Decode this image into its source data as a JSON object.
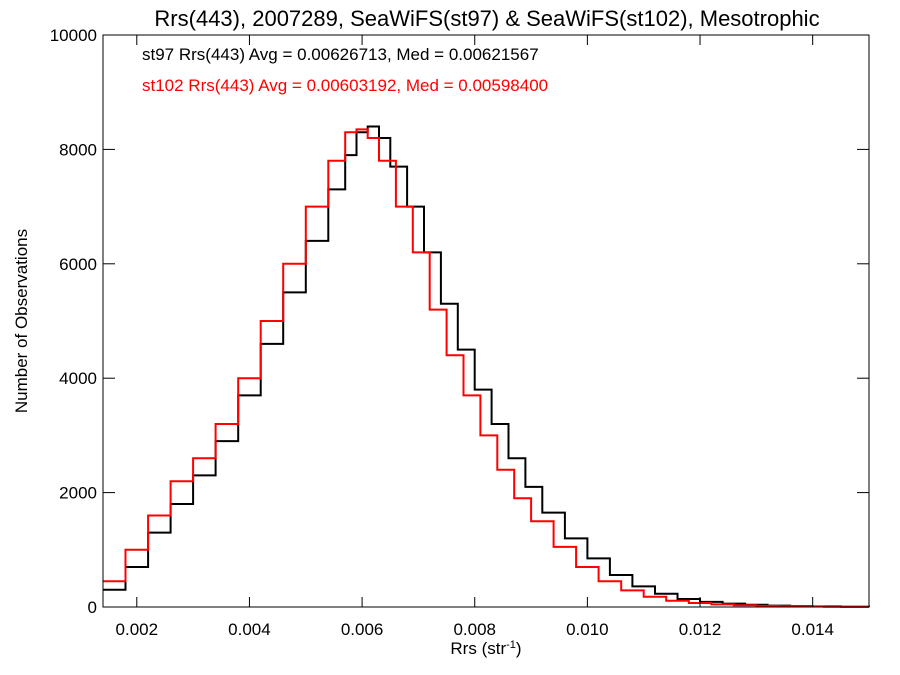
{
  "chart_data": {
    "type": "line",
    "title": "Rrs(443), 2007289, SeaWiFS(st97) & SeaWiFS(st102), Mesotrophic",
    "xlabel": "Rrs (str",
    "xlabel_sup": "-1",
    "xlabel_close": ")",
    "ylabel": "Number of Observations",
    "xlim": [
      0.0014,
      0.015
    ],
    "ylim": [
      0,
      10000
    ],
    "xticks": [
      0.002,
      0.004,
      0.006,
      0.008,
      0.01,
      0.012,
      0.014
    ],
    "xtick_labels": [
      "0.002",
      "0.004",
      "0.006",
      "0.008",
      "0.010",
      "0.012",
      "0.014"
    ],
    "yticks": [
      0,
      2000,
      4000,
      6000,
      8000,
      10000
    ],
    "ytick_labels": [
      "0",
      "2000",
      "4000",
      "6000",
      "8000",
      "10000"
    ],
    "grid": false,
    "series": [
      {
        "name": "st97",
        "color": "#000000",
        "annotation": "st97 Rrs(443) Avg = 0.00626713, Med = 0.00621567",
        "x": [
          0.0014,
          0.0018,
          0.0022,
          0.0026,
          0.003,
          0.0034,
          0.0038,
          0.0042,
          0.0046,
          0.005,
          0.0054,
          0.0057,
          0.0059,
          0.0061,
          0.0063,
          0.0065,
          0.0068,
          0.0071,
          0.0074,
          0.0077,
          0.008,
          0.0083,
          0.0086,
          0.0089,
          0.0092,
          0.0096,
          0.01,
          0.0104,
          0.0108,
          0.0112,
          0.0116,
          0.012,
          0.0124,
          0.0128,
          0.0132,
          0.0136,
          0.014,
          0.0145,
          0.015
        ],
        "y": [
          300,
          700,
          1300,
          1800,
          2300,
          2900,
          3700,
          4600,
          5500,
          6400,
          7300,
          7900,
          8300,
          8400,
          8200,
          7700,
          7000,
          6200,
          5300,
          4500,
          3800,
          3200,
          2600,
          2100,
          1650,
          1200,
          850,
          560,
          360,
          230,
          140,
          90,
          60,
          40,
          25,
          15,
          10,
          5,
          0
        ]
      },
      {
        "name": "st102",
        "color": "#ff0000",
        "annotation": "st102 Rrs(443) Avg = 0.00603192, Med = 0.00598400",
        "x": [
          0.0014,
          0.0018,
          0.0022,
          0.0026,
          0.003,
          0.0034,
          0.0038,
          0.0042,
          0.0046,
          0.005,
          0.0054,
          0.0057,
          0.0059,
          0.0061,
          0.0063,
          0.0066,
          0.0069,
          0.0072,
          0.0075,
          0.0078,
          0.0081,
          0.0084,
          0.0087,
          0.009,
          0.0094,
          0.0098,
          0.0102,
          0.0106,
          0.011,
          0.0114,
          0.0118,
          0.0122,
          0.0126,
          0.013,
          0.0134,
          0.0138,
          0.0142,
          0.0146,
          0.015
        ],
        "y": [
          450,
          1000,
          1600,
          2200,
          2600,
          3200,
          4000,
          5000,
          6000,
          7000,
          7800,
          8300,
          8350,
          8200,
          7800,
          7000,
          6200,
          5200,
          4400,
          3700,
          3000,
          2400,
          1900,
          1500,
          1050,
          700,
          450,
          290,
          180,
          110,
          70,
          45,
          30,
          20,
          12,
          8,
          5,
          3,
          0
        ]
      }
    ]
  }
}
